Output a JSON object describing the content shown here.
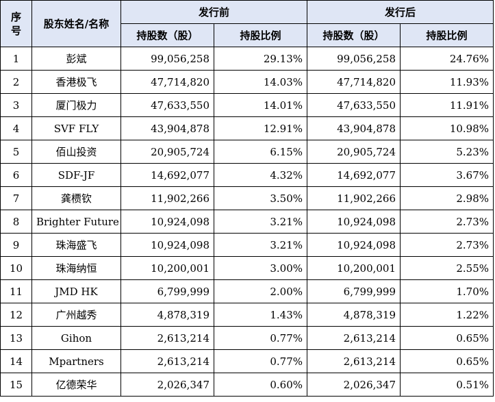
{
  "table": {
    "headers": {
      "seq_line1": "序",
      "seq_line2": "号",
      "name": "股东姓名/名称",
      "before": "发行前",
      "after": "发行后",
      "shares": "持股数（股）",
      "ratio": "持股比例"
    },
    "rows": [
      {
        "seq": "1",
        "name": "彭斌",
        "shares_before": "99,056,258",
        "ratio_before": "29.13%",
        "shares_after": "99,056,258",
        "ratio_after": "24.76%"
      },
      {
        "seq": "2",
        "name": "香港极飞",
        "shares_before": "47,714,820",
        "ratio_before": "14.03%",
        "shares_after": "47,714,820",
        "ratio_after": "11.93%"
      },
      {
        "seq": "3",
        "name": "厦门极力",
        "shares_before": "47,633,550",
        "ratio_before": "14.01%",
        "shares_after": "47,633,550",
        "ratio_after": "11.91%"
      },
      {
        "seq": "4",
        "name": "SVF FLY",
        "shares_before": "43,904,878",
        "ratio_before": "12.91%",
        "shares_after": "43,904,878",
        "ratio_after": "10.98%"
      },
      {
        "seq": "5",
        "name": "佰山投资",
        "shares_before": "20,905,724",
        "ratio_before": "6.15%",
        "shares_after": "20,905,724",
        "ratio_after": "5.23%"
      },
      {
        "seq": "6",
        "name": "SDF-JF",
        "shares_before": "14,692,077",
        "ratio_before": "4.32%",
        "shares_after": "14,692,077",
        "ratio_after": "3.67%"
      },
      {
        "seq": "7",
        "name": "龚槚钦",
        "shares_before": "11,902,266",
        "ratio_before": "3.50%",
        "shares_after": "11,902,266",
        "ratio_after": "2.98%"
      },
      {
        "seq": "8",
        "name": "Brighter Future",
        "shares_before": "10,924,098",
        "ratio_before": "3.21%",
        "shares_after": "10,924,098",
        "ratio_after": "2.73%"
      },
      {
        "seq": "9",
        "name": "珠海盛飞",
        "shares_before": "10,924,098",
        "ratio_before": "3.21%",
        "shares_after": "10,924,098",
        "ratio_after": "2.73%"
      },
      {
        "seq": "10",
        "name": "珠海纳恒",
        "shares_before": "10,200,001",
        "ratio_before": "3.00%",
        "shares_after": "10,200,001",
        "ratio_after": "2.55%"
      },
      {
        "seq": "11",
        "name": "JMD HK",
        "shares_before": "6,799,999",
        "ratio_before": "2.00%",
        "shares_after": "6,799,999",
        "ratio_after": "1.70%"
      },
      {
        "seq": "12",
        "name": "广州越秀",
        "shares_before": "4,878,319",
        "ratio_before": "1.43%",
        "shares_after": "4,878,319",
        "ratio_after": "1.22%"
      },
      {
        "seq": "13",
        "name": "Gihon",
        "shares_before": "2,613,214",
        "ratio_before": "0.77%",
        "shares_after": "2,613,214",
        "ratio_after": "0.65%"
      },
      {
        "seq": "14",
        "name": "Mpartners",
        "shares_before": "2,613,214",
        "ratio_before": "0.77%",
        "shares_after": "2,613,214",
        "ratio_after": "0.65%"
      },
      {
        "seq": "15",
        "name": "亿德荣华",
        "shares_before": "2,026,347",
        "ratio_before": "0.60%",
        "shares_after": "2,026,347",
        "ratio_after": "0.51%"
      }
    ]
  }
}
